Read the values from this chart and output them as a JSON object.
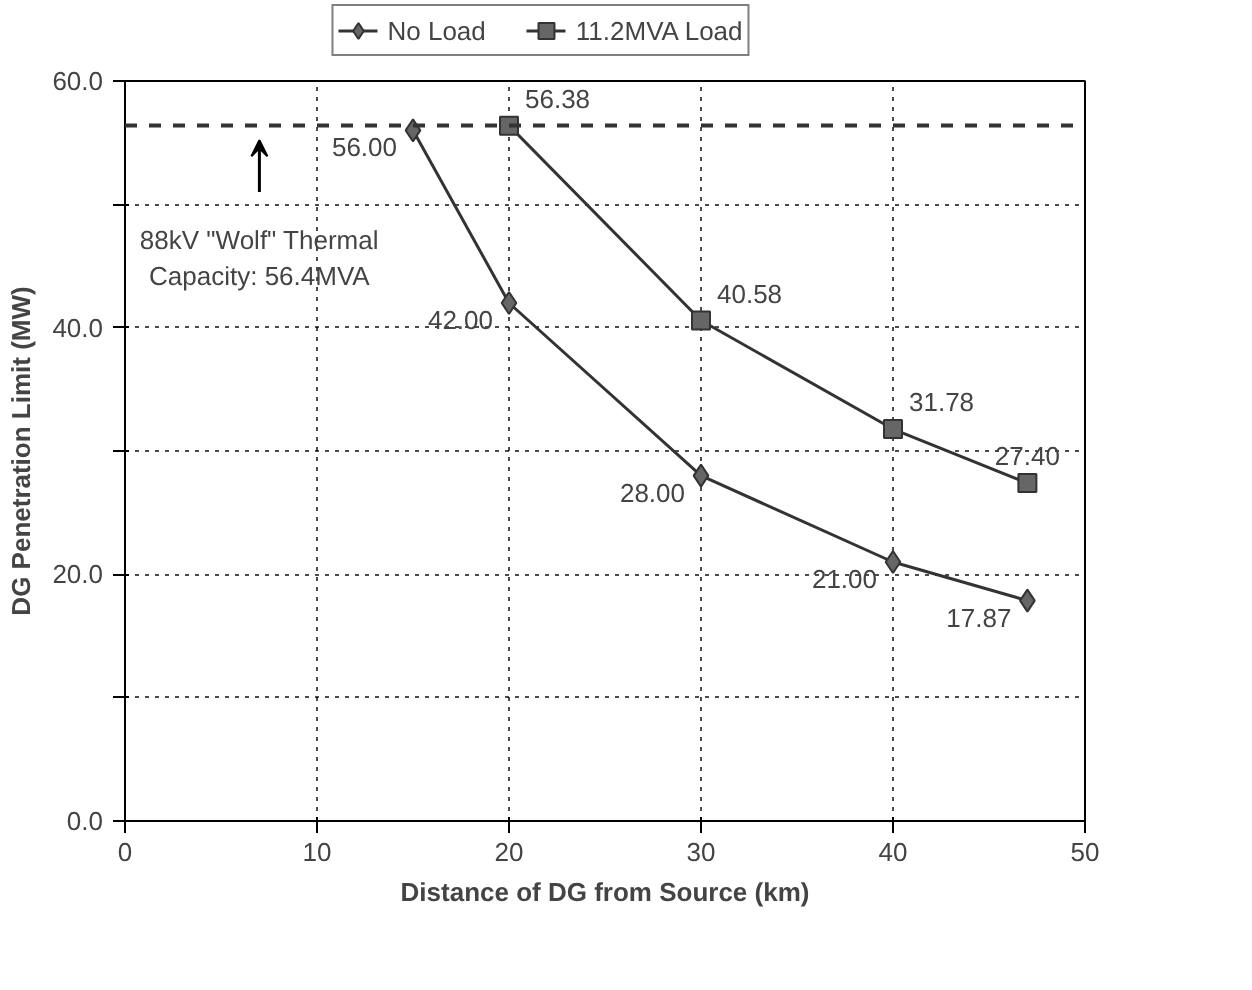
{
  "chart_data": {
    "type": "line",
    "xlabel": "Distance of DG from Source (km)",
    "ylabel": "DG Penetration Limit (MW)",
    "xlim": [
      0,
      50
    ],
    "xticks": [
      0,
      10,
      20,
      30,
      40,
      50
    ],
    "ylim": [
      0,
      60
    ],
    "yticks": [
      {
        "value": 0,
        "label": "0.0"
      },
      {
        "value": 10,
        "label": null
      },
      {
        "value": 20,
        "label": "20.0"
      },
      {
        "value": 30,
        "label": null
      },
      {
        "value": 40,
        "label": "40.0"
      },
      {
        "value": 50,
        "label": null
      },
      {
        "value": 60,
        "label": "60.0"
      }
    ],
    "grid": true,
    "legend": "top",
    "line_style": "solid",
    "series": [
      {
        "name": "No Load",
        "color": "#333333",
        "marker": "diamond",
        "x": [
          15,
          20,
          30,
          40,
          47
        ],
        "values": [
          56.0,
          42.0,
          28.0,
          21.0,
          17.87
        ],
        "value_labels": [
          "56.00",
          "42.00",
          "28.00",
          "21.00",
          "17.87"
        ]
      },
      {
        "name": "11.2MVA Load",
        "color": "#333333",
        "marker": "square",
        "x": [
          20,
          30,
          40,
          47
        ],
        "values": [
          56.38,
          40.58,
          31.78,
          27.4
        ],
        "value_labels": [
          "56.38",
          "40.58",
          "31.78",
          "27.40"
        ]
      }
    ],
    "ref_lines": [
      {
        "axis": "y",
        "value": 56.4,
        "label": "88kV \"Wolf\" Thermal\nCapacity: 56.4MVA",
        "line_style": "dashed",
        "color": "#333333"
      }
    ]
  }
}
